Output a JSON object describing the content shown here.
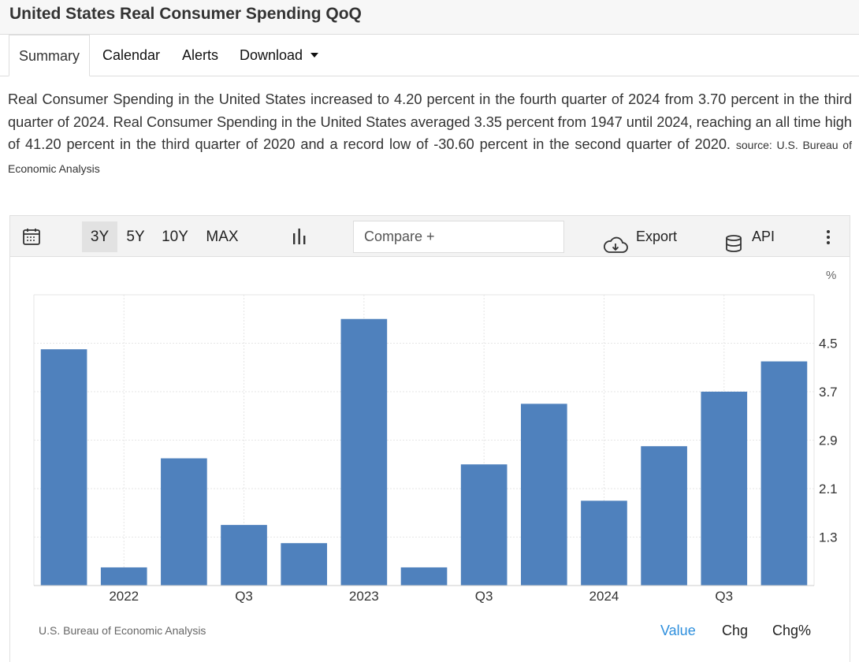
{
  "page_title": "United States Real Consumer Spending QoQ",
  "tabs": [
    {
      "label": "Summary"
    },
    {
      "label": "Calendar"
    },
    {
      "label": "Alerts"
    },
    {
      "label": "Download"
    }
  ],
  "description": "Real Consumer Spending in the United States increased to 4.20 percent in the fourth quarter of 2024 from 3.70 percent in the third quarter of 2024. Real Consumer Spending in the United States averaged 3.35 percent from 1947 until 2024, reaching an all time high of 41.20 percent in the third quarter of 2020 and a record low of -30.60 percent in the second quarter of 2020.",
  "source_inline": "source: U.S. Bureau of Economic Analysis",
  "toolbar": {
    "calendar_icon": "calendar-icon",
    "ranges": [
      "3Y",
      "5Y",
      "10Y",
      "MAX"
    ],
    "active_range": "3Y",
    "chart_type_icon": "bar-chart-icon",
    "compare_placeholder": "Compare +",
    "export_label": "Export",
    "export_icon": "cloud-download-icon",
    "api_label": "API",
    "api_icon": "database-icon",
    "more_icon": "more-vertical-icon"
  },
  "chart_footer": {
    "source": "U.S. Bureau of Economic Analysis",
    "views": [
      "Value",
      "Chg",
      "Chg%"
    ],
    "active_view": "Value"
  },
  "colors": {
    "bar": "#4f81bd",
    "active_link": "#2e8fdd",
    "grid": "#e6e6e6"
  },
  "chart_data": {
    "type": "bar",
    "unit": "%",
    "x_tick_labels": [
      "2022",
      "Q3",
      "2023",
      "Q3",
      "2024",
      "Q3"
    ],
    "categories": [
      "Q4 2021",
      "Q1 2022",
      "Q2 2022",
      "Q3 2022",
      "Q4 2022",
      "Q1 2023",
      "Q2 2023",
      "Q3 2023",
      "Q4 2023",
      "Q1 2024",
      "Q2 2024",
      "Q3 2024",
      "Q4 2024"
    ],
    "values": [
      4.4,
      0.8,
      2.6,
      1.5,
      1.2,
      4.9,
      0.8,
      2.5,
      3.5,
      1.9,
      2.8,
      3.7,
      4.2
    ],
    "y_ticks": [
      1.3,
      2.1,
      2.9,
      3.7,
      4.5
    ],
    "ylim": [
      0.5,
      5.3
    ],
    "y_axis_position": "right",
    "grid": true
  }
}
